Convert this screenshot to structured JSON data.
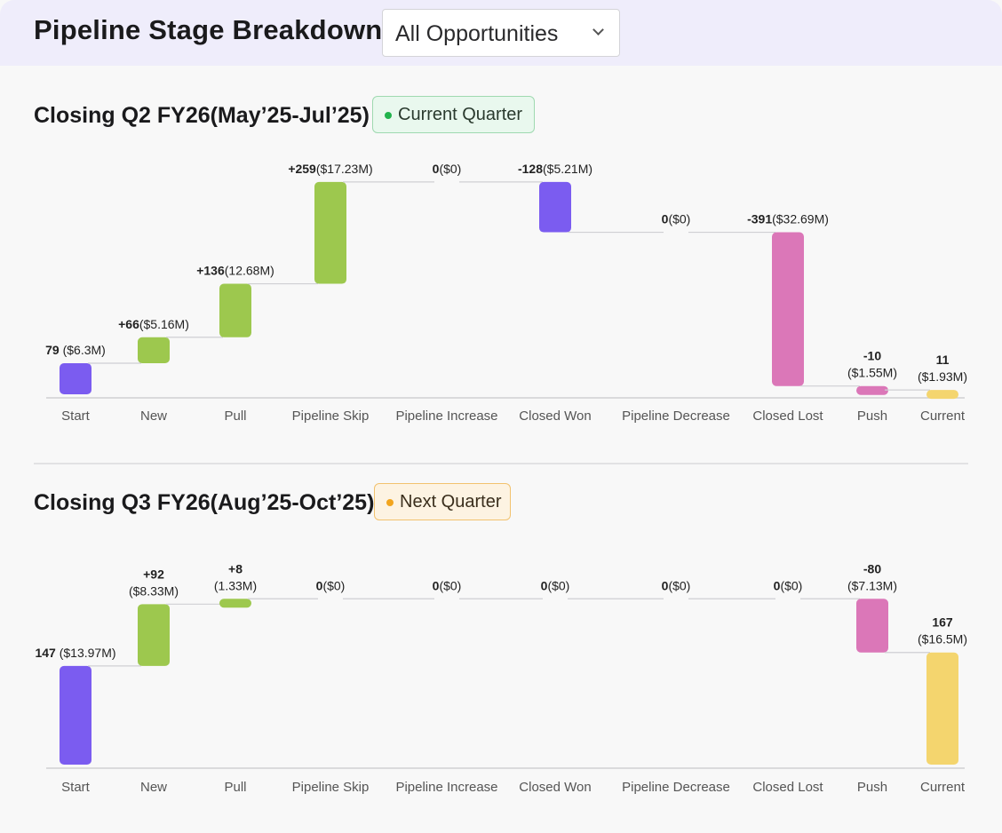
{
  "header": {
    "title": "Pipeline Stage Breakdown",
    "filter_value": "All Opportunities"
  },
  "colors": {
    "start": "#7b5cf0",
    "increase": "#9dc84e",
    "decrease_won": "#7b5cf0",
    "decrease": "#db77b8",
    "current": "#f4d56e",
    "connector": "#cfcfd3",
    "axis": "#cfcfd3"
  },
  "sections": [
    {
      "title": "Closing Q2 FY26(May’25-Jul’25)",
      "badge": "Current Quarter",
      "badge_dot_color": "#22b34c"
    },
    {
      "title": "Closing Q3 FY26(Aug’25-Oct’25)",
      "badge": "Next Quarter",
      "badge_dot_color": "#f2a51e"
    }
  ],
  "chart_data": [
    {
      "type": "waterfall",
      "title": "Closing Q2 FY26(May’25-Jul’25)",
      "categories": [
        "Start",
        "New",
        "Pull",
        "Pipeline Skip",
        "Pipeline Increase",
        "Closed Won",
        "Pipeline Decrease",
        "Closed Lost",
        "Push",
        "Current"
      ],
      "values": [
        79,
        66,
        136,
        259,
        0,
        -128,
        0,
        -391,
        -10,
        11
      ],
      "kinds": [
        "start",
        "increase",
        "increase",
        "increase",
        "increase",
        "won",
        "decrease",
        "decrease",
        "decrease",
        "current"
      ],
      "labels_bold": [
        "79",
        "+66",
        "+136",
        "+259",
        "0",
        "-128",
        "0",
        "-391",
        "-10",
        "11"
      ],
      "labels_amount": [
        " ($6.3M)",
        "($5.16M)",
        "(12.68M)",
        "($17.23M)",
        "($0)",
        "($5.21M)",
        "($0)",
        "($32.69M)",
        "($1.55M)",
        "($1.93M)"
      ],
      "label_stacked": [
        false,
        false,
        false,
        false,
        false,
        false,
        false,
        false,
        true,
        true
      ],
      "ylim": [
        0,
        560
      ]
    },
    {
      "type": "waterfall",
      "title": "Closing Q3 FY26(Aug’25-Oct’25)",
      "categories": [
        "Start",
        "New",
        "Pull",
        "Pipeline Skip",
        "Pipeline Increase",
        "Closed Won",
        "Pipeline Decrease",
        "Closed Lost",
        "Push",
        "Current"
      ],
      "values": [
        147,
        92,
        8,
        0,
        0,
        0,
        0,
        0,
        -80,
        167
      ],
      "kinds": [
        "start",
        "increase",
        "increase",
        "increase",
        "increase",
        "won",
        "decrease",
        "decrease",
        "decrease",
        "current"
      ],
      "labels_bold": [
        "147",
        "+92",
        "+8",
        "0",
        "0",
        "0",
        "0",
        "0",
        "-80",
        "167"
      ],
      "labels_amount": [
        " ($13.97M)",
        "($8.33M)",
        "(1.33M)",
        "($0)",
        "($0)",
        "($0)",
        "($0)",
        "($0)",
        "($7.13M)",
        "($16.5M)"
      ],
      "label_stacked": [
        false,
        true,
        true,
        false,
        false,
        false,
        false,
        false,
        true,
        true
      ],
      "ylim": [
        0,
        250
      ]
    }
  ]
}
